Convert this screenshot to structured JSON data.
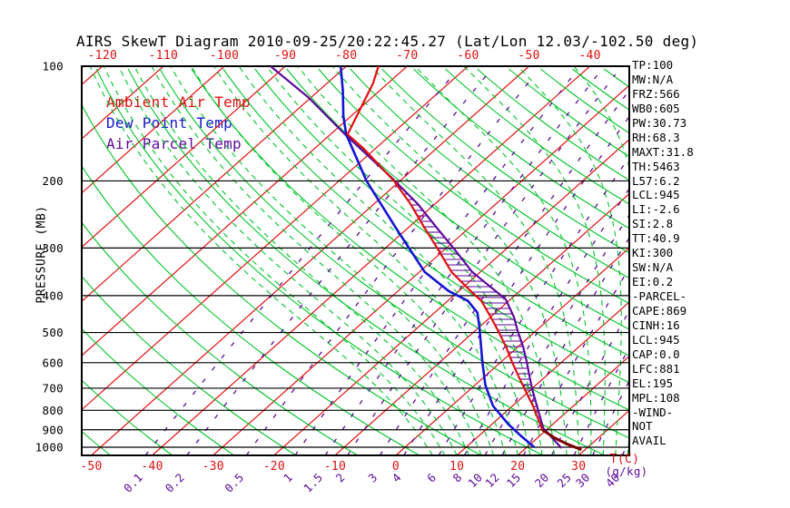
{
  "title": "AIRS SkewT Diagram 2010-09-25/20:22:45.27 (Lat/Lon 12.03/-102.50 deg)",
  "colors": {
    "temp_line": "#e01010",
    "dewpoint_line": "#1414d2",
    "parcel_line": "#5c0a9c",
    "isotherm": "#e01010",
    "adiabat": "#00c428",
    "mixing_ratio": "#5c0a9c",
    "grid": "#000000",
    "overlap_surface": "#7c0000"
  },
  "legend": {
    "items": [
      {
        "label": "Ambient Air Temp",
        "color": "temp_line"
      },
      {
        "label": "Dew Point Temp",
        "color": "dewpoint_line"
      },
      {
        "label": "Air Parcel Temp",
        "color": "parcel_line"
      }
    ]
  },
  "y_axis": {
    "label": "PRESSURE (MB)",
    "ticks": [
      100,
      200,
      300,
      400,
      500,
      600,
      700,
      800,
      900,
      1000
    ]
  },
  "top_axis": {
    "ticks": [
      -120,
      -110,
      -100,
      -90,
      -80,
      -70,
      -60,
      -50,
      -40
    ]
  },
  "bottom_axis": {
    "ticks": [
      -50,
      -40,
      -30,
      -20,
      -10,
      0,
      10,
      20,
      30
    ],
    "unit": "T(C)"
  },
  "mixing_axis": {
    "values": [
      0.1,
      0.2,
      0.5,
      1,
      1.5,
      2,
      3,
      4,
      6,
      8,
      10,
      12,
      15,
      20,
      25,
      30,
      40
    ],
    "unit": "(g/kg)"
  },
  "stats_panel": {
    "lines": [
      "TP:100",
      "MW:N/A",
      "FRZ:566",
      "WB0:605",
      "PW:30.73",
      "RH:68.3",
      "MAXT:31.8",
      "TH:5463",
      "L57:6.2",
      "LCL:945",
      "LI:-2.6",
      "SI:2.8",
      "TT:40.9",
      "KI:300",
      "SW:N/A",
      "EI:0.2",
      "-PARCEL-",
      "CAPE:869",
      "CINH:16",
      "LCL:945",
      "CAP:0.0",
      "LFC:881",
      "EL:195",
      "MPL:108",
      "-WIND-",
      "NOT",
      "AVAIL"
    ]
  },
  "chart_data": {
    "type": "skewt",
    "title": "AIRS SkewT Diagram 2010-09-25/20:22:45.27",
    "pressure_range_mb": [
      100,
      1050
    ],
    "pressure_ticks_mb": [
      100,
      200,
      300,
      400,
      500,
      600,
      700,
      800,
      900,
      1000
    ],
    "isotherms_c": {
      "min": -120,
      "max": 40,
      "step": 10
    },
    "dry_adiabats_theta_c": {
      "min": -60,
      "max": 190,
      "step": 10
    },
    "moist_adiabats_start_c": {
      "min": 6,
      "max": 40,
      "step": 2
    },
    "mixing_ratio_g_kg": [
      0.1,
      0.2,
      0.5,
      1,
      1.5,
      2,
      3,
      4,
      6,
      8,
      10,
      12,
      15,
      20,
      25,
      30,
      40
    ],
    "cape_hatch_p_range_mb": [
      200,
      885
    ],
    "sounding": {
      "ambient_temp_p_t": [
        [
          100,
          -74.7
        ],
        [
          111,
          -72.4
        ],
        [
          151,
          -67.2
        ],
        [
          164,
          -62.1
        ],
        [
          200,
          -51.0
        ],
        [
          230,
          -44.0
        ],
        [
          264,
          -37.6
        ],
        [
          302,
          -31.2
        ],
        [
          347,
          -24.7
        ],
        [
          383,
          -19.0
        ],
        [
          413,
          -14.5
        ],
        [
          455,
          -10.0
        ],
        [
          495,
          -6.2
        ],
        [
          546,
          -1.9
        ],
        [
          600,
          2.0
        ],
        [
          651,
          5.5
        ],
        [
          707,
          9.1
        ],
        [
          787,
          13.8
        ],
        [
          900,
          19.3
        ],
        [
          945,
          22.8
        ],
        [
          982,
          26.1
        ],
        [
          1015,
          29.4
        ]
      ],
      "dew_point_p_t": [
        [
          100,
          -80.9
        ],
        [
          116,
          -76.0
        ],
        [
          135,
          -71.3
        ],
        [
          151,
          -67.4
        ],
        [
          200,
          -55.5
        ],
        [
          264,
          -42.3
        ],
        [
          347,
          -29.1
        ],
        [
          389,
          -21.7
        ],
        [
          413,
          -16.7
        ],
        [
          443,
          -13.0
        ],
        [
          482,
          -10.1
        ],
        [
          600,
          -2.9
        ],
        [
          687,
          1.7
        ],
        [
          779,
          6.8
        ],
        [
          872,
          12.8
        ],
        [
          938,
          17.2
        ],
        [
          1000,
          21.2
        ]
      ],
      "parcel_temp_p_t": [
        [
          100,
          -92.4
        ],
        [
          121,
          -80.3
        ],
        [
          151,
          -67.6
        ],
        [
          195,
          -52.3
        ],
        [
          230,
          -42.8
        ],
        [
          264,
          -35.6
        ],
        [
          302,
          -28.5
        ],
        [
          347,
          -21.3
        ],
        [
          409,
          -10.8
        ],
        [
          456,
          -6.1
        ],
        [
          495,
          -3.0
        ],
        [
          546,
          0.9
        ],
        [
          600,
          4.4
        ],
        [
          651,
          7.3
        ],
        [
          707,
          10.3
        ],
        [
          787,
          14.4
        ],
        [
          890,
          19.1
        ],
        [
          1005,
          25.8
        ]
      ]
    }
  }
}
